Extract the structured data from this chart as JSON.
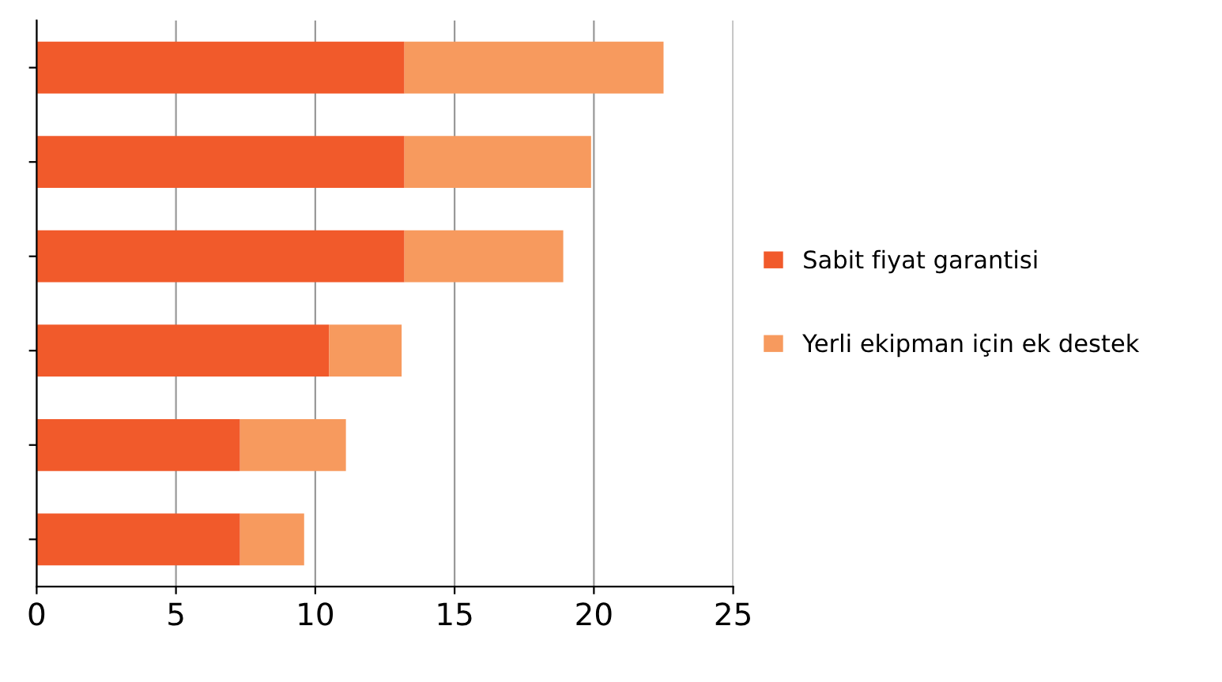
{
  "chart_data": {
    "type": "bar",
    "orientation": "horizontal",
    "stacked": true,
    "categories": [
      null,
      null,
      null,
      null,
      null,
      null
    ],
    "series": [
      {
        "name": "Sabit fiyat garantisi",
        "color": "#f15a2b",
        "values": [
          13.2,
          13.2,
          13.2,
          10.5,
          7.3,
          7.3
        ]
      },
      {
        "name": "Yerli ekipman için ek destek",
        "color": "#f79a5e",
        "values": [
          9.3,
          6.7,
          5.7,
          2.6,
          3.8,
          2.3
        ]
      }
    ],
    "xlim": [
      0,
      25
    ],
    "xticks": [
      0,
      5,
      10,
      15,
      20,
      25
    ],
    "grid": "x",
    "legend": "right"
  }
}
